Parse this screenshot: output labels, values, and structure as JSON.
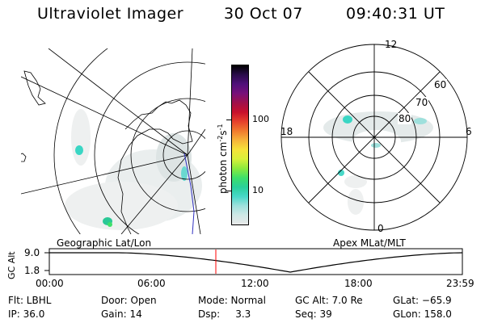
{
  "header": {
    "title": "Ultraviolet Imager",
    "date": "30 Oct 07",
    "time": "09:40:31 UT"
  },
  "geo_panel": {
    "caption": "Geographic Lat/Lon"
  },
  "polar_panel": {
    "caption": "Apex MLat/MLT",
    "mlt_labels": [
      "12",
      "18",
      "6",
      "0"
    ],
    "lat_labels": [
      "60",
      "70",
      "80"
    ]
  },
  "colorbar": {
    "unit": "photon cm",
    "unit_sup1": "-2",
    "unit_mid": "s",
    "unit_sup2": "-1",
    "ticks": [
      "100",
      "10"
    ],
    "colors": [
      "#e8e8e8",
      "#cfe8e6",
      "#9ee0dc",
      "#48d8c8",
      "#2ad09a",
      "#3ee06a",
      "#8cea3c",
      "#d8f03a",
      "#f6e23a",
      "#f6b43a",
      "#f07a2e",
      "#e6402c",
      "#c8102c",
      "#a0104a",
      "#78107a",
      "#50107a",
      "#2a0c4a",
      "#000000"
    ]
  },
  "timeline": {
    "ylabel": "GC Alt",
    "ytick_top": "9.0",
    "ytick_bottom": "1.8",
    "xticks": [
      "00:00",
      "06:00",
      "12:00",
      "18:00",
      "23:59"
    ],
    "marker_time": "09:40:31",
    "marker_color": "#ff0000"
  },
  "info": {
    "filter": "Flt: LBHL",
    "ip": "IP: 36.0",
    "door": "Door: Open",
    "gain": "Gain: 14",
    "mode": "Mode: Normal",
    "dsp": "Dsp:     3.3",
    "gc_alt": "GC Alt: 7.0 Re",
    "seq": "Seq: 39",
    "glat": "GLat: −65.9",
    "glon": "GLon: 158.0"
  }
}
